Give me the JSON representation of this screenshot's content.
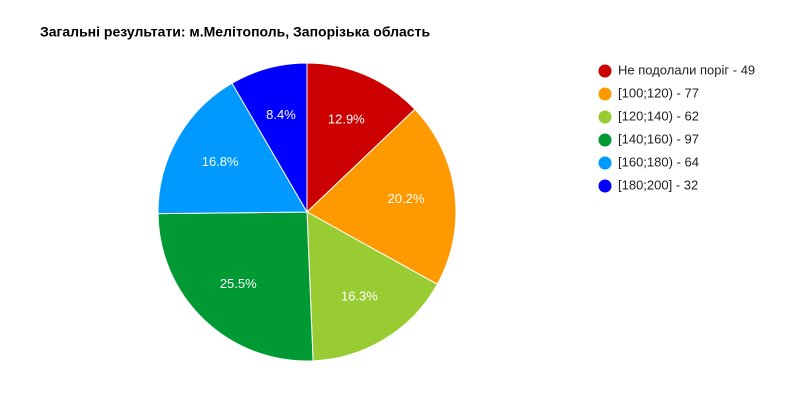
{
  "chart_data": {
    "type": "pie",
    "title": "Загальні результати: м.Мелітополь, Запорізька область",
    "categories": [
      "Не подолали поріг - 49",
      "[100;120) - 77",
      "[120;140) - 62",
      "[140;160) - 97",
      "[160;180) - 64",
      "[180;200] - 32"
    ],
    "values": [
      12.9,
      20.2,
      16.3,
      25.5,
      16.8,
      8.4
    ],
    "value_labels": [
      "12.9%",
      "20.2%",
      "16.3%",
      "25.5%",
      "16.8%",
      "8.4%"
    ],
    "colors": [
      "#cc0000",
      "#ff9900",
      "#99cc33",
      "#009933",
      "#0099ff",
      "#0000ff"
    ],
    "legend": "right"
  }
}
